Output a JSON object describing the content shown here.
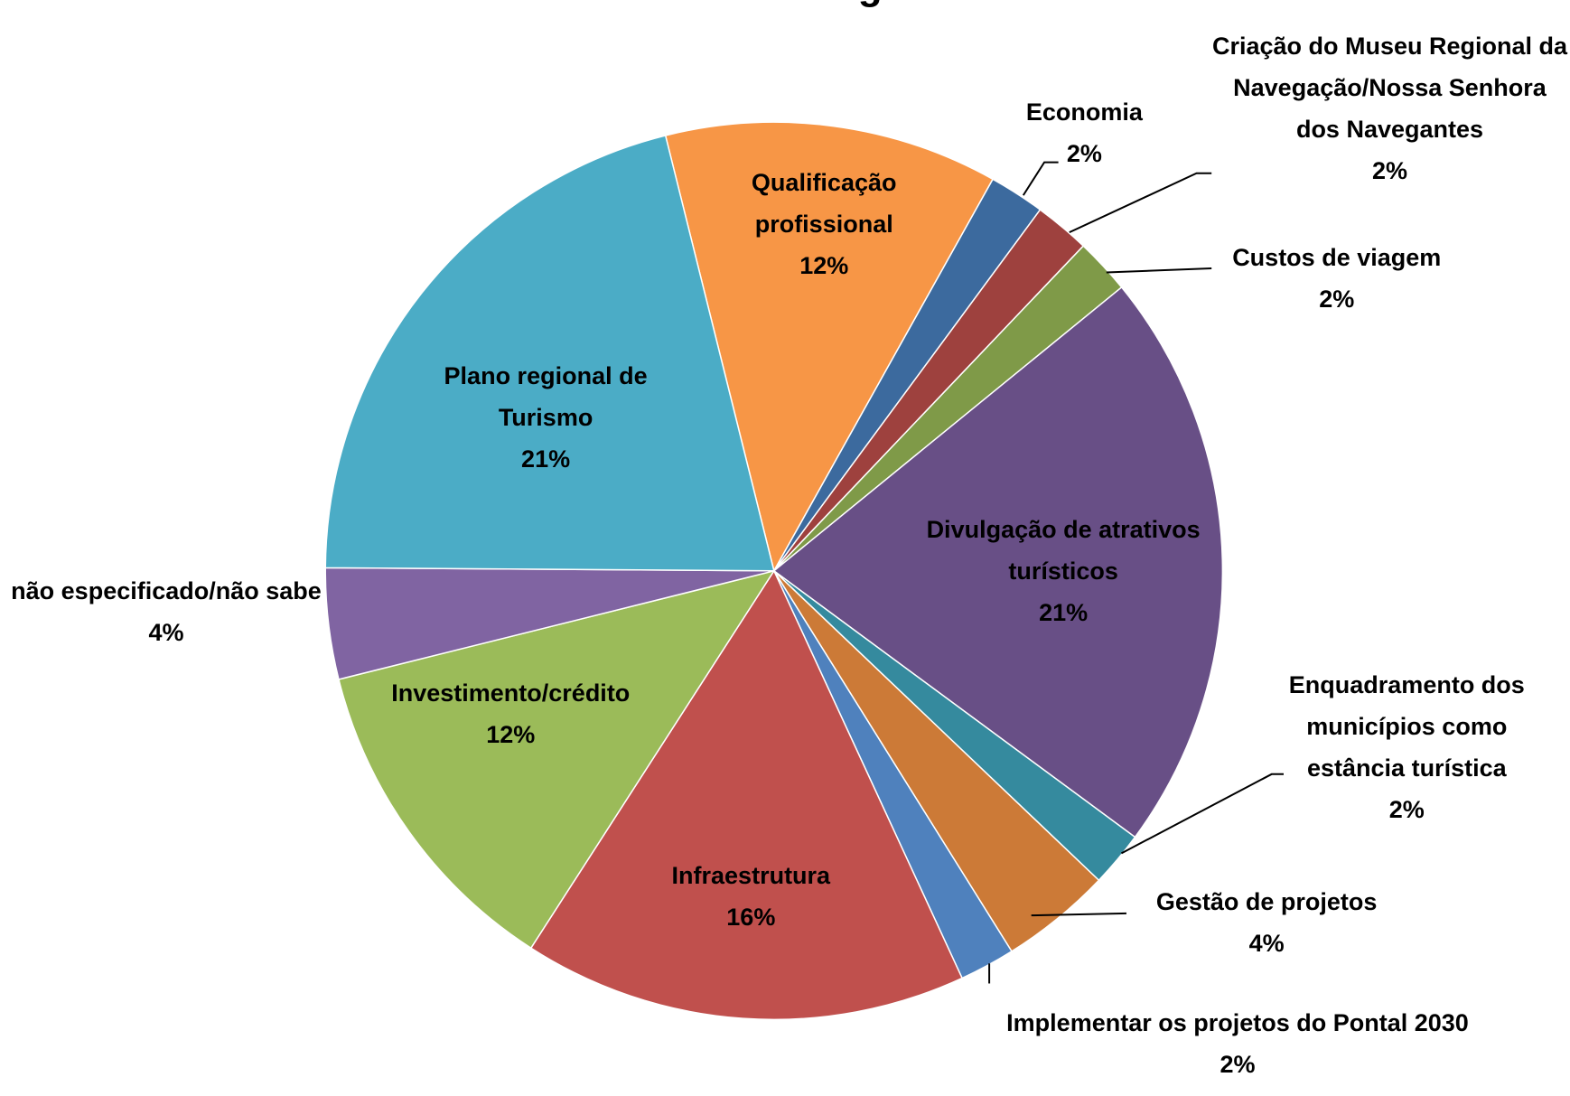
{
  "chart_data": {
    "type": "pie",
    "title": "turismo na região?",
    "categories": [
      "Qualificação profissional",
      "Economia",
      "Criação do Museu Regional da Navegação/Nossa Senhora dos Navegantes",
      "Custos de viagem",
      "Divulgação de atrativos turísticos",
      "Enquadramento dos municípios como estância turística",
      "Gestão de projetos",
      "Implementar os projetos do Pontal 2030",
      "Infraestrutura",
      "Investimento/crédito",
      "não especificado/não sabe",
      "Plano regional de Turismo"
    ],
    "values": [
      12,
      2,
      2,
      2,
      21,
      2,
      4,
      2,
      16,
      12,
      4,
      21
    ],
    "value_labels": [
      "12%",
      "2%",
      "2%",
      "2%",
      "21%",
      "2%",
      "4%",
      "2%",
      "16%",
      "12%",
      "4%",
      "21%"
    ],
    "colors": [
      "#f79646",
      "#3c6a9e",
      "#9e413e",
      "#7f9a48",
      "#684f86",
      "#358a9e",
      "#cc7a37",
      "#4f81bd",
      "#c0504d",
      "#9bbb59",
      "#8064a2",
      "#4bacc6"
    ]
  }
}
